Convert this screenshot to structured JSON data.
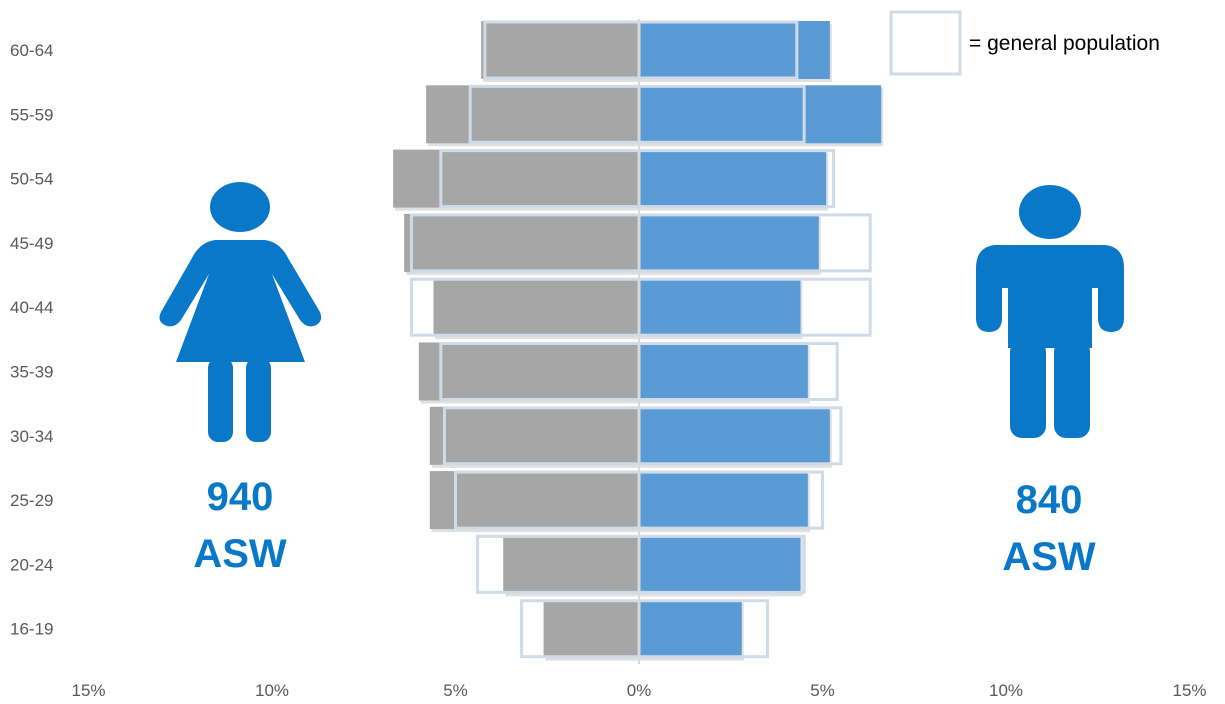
{
  "chart_data": {
    "type": "bar",
    "orientation": "horizontal-population-pyramid",
    "categories": [
      "16-19",
      "20-24",
      "25-29",
      "30-34",
      "35-39",
      "40-44",
      "45-49",
      "50-54",
      "55-59",
      "60-64"
    ],
    "series": [
      {
        "side": "left",
        "values": [
          2.6,
          3.7,
          5.7,
          5.7,
          6.0,
          5.6,
          6.4,
          6.7,
          5.8,
          4.3
        ]
      },
      {
        "side": "right",
        "values": [
          2.8,
          4.4,
          4.6,
          5.2,
          4.6,
          4.4,
          4.9,
          5.1,
          6.6,
          5.2
        ]
      }
    ],
    "reference_outline": {
      "name": "general population",
      "left": [
        3.2,
        4.4,
        5.0,
        5.3,
        5.4,
        6.2,
        6.2,
        5.4,
        4.6,
        4.2
      ],
      "right": [
        3.5,
        4.5,
        5.0,
        5.5,
        5.4,
        6.3,
        6.3,
        5.3,
        4.5,
        4.3
      ]
    },
    "x_ticks": [
      "15%",
      "10%",
      "5%",
      "0%",
      "5%",
      "10%",
      "15%"
    ],
    "xlim": [
      -15,
      15
    ],
    "legend": {
      "text": "= general population",
      "placement": "top-right"
    },
    "colors": {
      "left": "#a6a6a6",
      "right": "#5b9bd5",
      "outline": "#d0dbe8",
      "accent": "#0a78c8"
    }
  },
  "annotations": {
    "female_count": "940",
    "female_unit": "ASW",
    "male_count": "840",
    "male_unit": "ASW"
  },
  "icons": {
    "female": "woman-icon",
    "male": "man-icon"
  }
}
